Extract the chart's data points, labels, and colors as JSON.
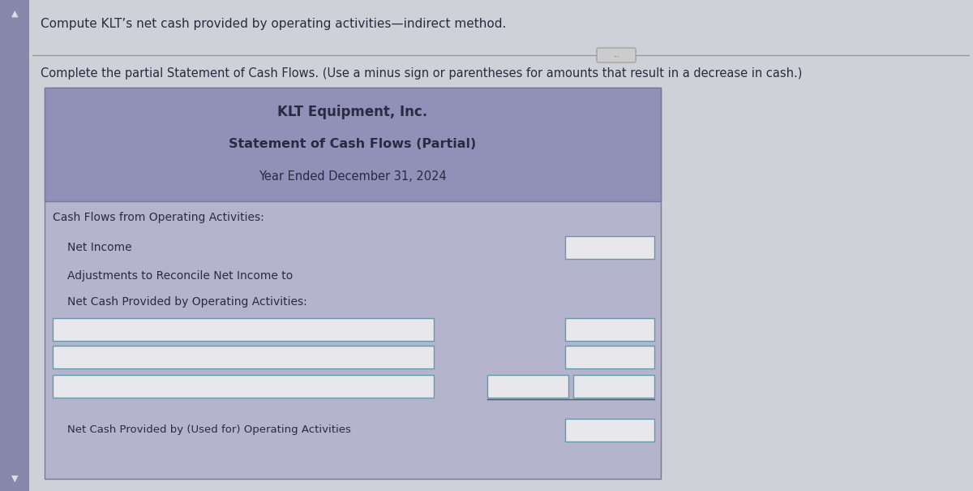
{
  "outer_bg": "#d0d0d8",
  "sidebar_color": "#8888aa",
  "header_bg": "#9090b8",
  "content_bg": "#b4b4cc",
  "instruction_top": "Compute KLT’s net cash provided by operating activities—indirect method.",
  "instruction_bottom": "Complete the partial Statement of Cash Flows. (Use a minus sign or parentheses for amounts that result in a decrease in cash.)",
  "title_line1": "KLT Equipment, Inc.",
  "title_line2": "Statement of Cash Flows (Partial)",
  "title_line3": "Year Ended December 31, 2024",
  "row1_label": "Cash Flows from Operating Activities:",
  "row2_label": "Net Income",
  "row3_label": "Adjustments to Reconcile Net Income to",
  "row4_label": "Net Cash Provided by Operating Activities:",
  "row_final_label": "Net Cash Provided by (Used for) Operating Activities",
  "text_color": "#2a2a40",
  "box_fill": "#e8e8ec",
  "box_edge": "#6699aa",
  "line_color": "#888899"
}
